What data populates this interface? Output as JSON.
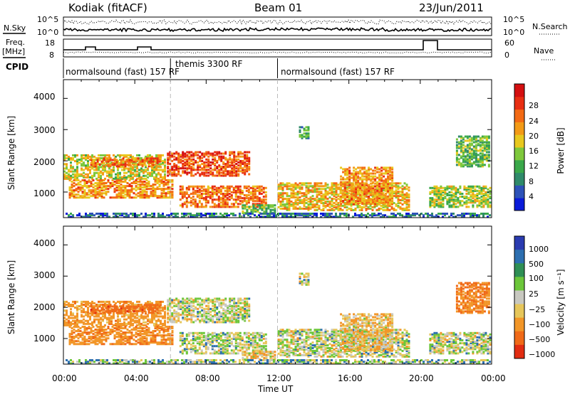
{
  "header": {
    "station": "Kodiak (fitACF)",
    "beam": "Beam 01",
    "date": "23/Jun/2011"
  },
  "nsky_panel": {
    "left_label": "N.Sky",
    "right_label": "N.Search",
    "left_ticks": [
      "10^5",
      "10^0"
    ],
    "right_ticks": [
      "10^5",
      "10^0"
    ]
  },
  "freq_panel": {
    "left_label_1": "Freq.",
    "left_label_2": "[MHz]",
    "left_ticks": [
      "18",
      "8"
    ],
    "right_ticks": [
      "60",
      "0"
    ],
    "right_label": "Nave"
  },
  "cpid": {
    "label": "CPID",
    "segments": [
      {
        "label": "normalsound (fast) 157 RF",
        "start_hour": 0,
        "end_hour": 6
      },
      {
        "label": "themis 3300 RF",
        "start_hour": 6,
        "end_hour": 12
      },
      {
        "label": "normalsound (fast) 157 RF",
        "start_hour": 12,
        "end_hour": 24
      }
    ]
  },
  "power_panel": {
    "ylabel": "Slant Range [km]",
    "yticks": [
      "1000",
      "2000",
      "3000",
      "4000"
    ],
    "colorbar_label": "Power [dB]",
    "colorbar_ticks": [
      "4",
      "8",
      "12",
      "16",
      "20",
      "24",
      "28"
    ]
  },
  "velocity_panel": {
    "ylabel": "Slant Range [km]",
    "yticks": [
      "1000",
      "2000",
      "3000",
      "4000"
    ],
    "colorbar_label": "Velocity [m s⁻¹]",
    "colorbar_ticks": [
      "1000",
      "500",
      "100",
      "25",
      "−25",
      "−100",
      "−500",
      "−1000"
    ]
  },
  "xaxis": {
    "label": "Time UT",
    "ticks": [
      "00:00",
      "04:00",
      "08:00",
      "12:00",
      "16:00",
      "20:00",
      "00:00"
    ]
  },
  "chart_data": {
    "type": "heatmap",
    "title": "Kodiak (fitACF)  Beam 01  23/Jun/2011",
    "xlabel": "Time UT",
    "ylabel": "Slant Range [km]",
    "xlim_hours": [
      0,
      24
    ],
    "ylim_km": [
      180,
      4600
    ],
    "power_colorbar_db": [
      0,
      30
    ],
    "velocity_colorbar_ms": [
      -1000,
      1000
    ],
    "power_colors": [
      "#0a1bd9",
      "#2d52b8",
      "#2f8a6a",
      "#3aa84a",
      "#7ec83c",
      "#e8c81e",
      "#f39a16",
      "#f36a14",
      "#e82e12",
      "#d40f10"
    ],
    "velocity_colors": [
      "#2a3bb0",
      "#2d6fb0",
      "#2f8f55",
      "#6cc63a",
      "#c8c8c0",
      "#e6c65a",
      "#f29628",
      "#f06a18",
      "#e22d12"
    ],
    "echo_regions": [
      {
        "t_start": 0.0,
        "t_end": 5.8,
        "r_min": 1400,
        "r_max": 2200,
        "power_db": 16,
        "velocity_ms": -200
      },
      {
        "t_start": 0.3,
        "t_end": 6.2,
        "r_min": 800,
        "r_max": 1400,
        "power_db": 20,
        "velocity_ms": -250
      },
      {
        "t_start": 1.5,
        "t_end": 5.5,
        "r_min": 1800,
        "r_max": 2100,
        "power_db": 22,
        "velocity_ms": -400
      },
      {
        "t_start": 5.8,
        "t_end": 10.5,
        "r_min": 1500,
        "r_max": 2300,
        "power_db": 24,
        "velocity_ms": 0
      },
      {
        "t_start": 6.5,
        "t_end": 11.5,
        "r_min": 500,
        "r_max": 1200,
        "power_db": 22,
        "velocity_ms": 10
      },
      {
        "t_start": 10.0,
        "t_end": 12.0,
        "r_min": 300,
        "r_max": 600,
        "power_db": 12,
        "velocity_ms": -80
      },
      {
        "t_start": 12.0,
        "t_end": 19.5,
        "r_min": 400,
        "r_max": 1300,
        "power_db": 18,
        "velocity_ms": 0
      },
      {
        "t_start": 15.5,
        "t_end": 18.5,
        "r_min": 600,
        "r_max": 1800,
        "power_db": 20,
        "velocity_ms": -80
      },
      {
        "t_start": 20.5,
        "t_end": 24.0,
        "r_min": 500,
        "r_max": 1200,
        "power_db": 14,
        "velocity_ms": 0
      },
      {
        "t_start": 22.0,
        "t_end": 24.0,
        "r_min": 1800,
        "r_max": 2800,
        "power_db": 12,
        "velocity_ms": -300
      },
      {
        "t_start": 13.2,
        "t_end": 13.8,
        "r_min": 2700,
        "r_max": 3100,
        "power_db": 10,
        "velocity_ms": 0
      },
      {
        "t_start": 0.0,
        "t_end": 24.0,
        "r_min": 180,
        "r_max": 330,
        "power_db": 6,
        "velocity_ms": 50
      }
    ]
  }
}
